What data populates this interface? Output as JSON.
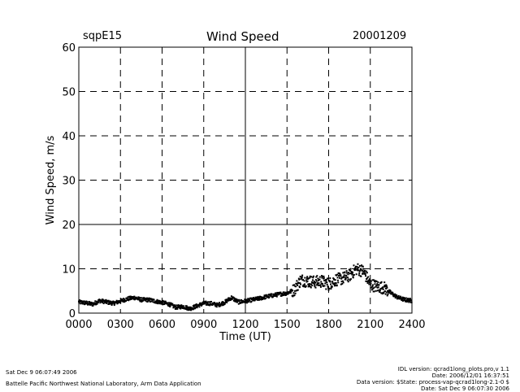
{
  "header": {
    "station": "sqpE15",
    "title": "Wind Speed",
    "date": "20001209"
  },
  "footer": {
    "left_line1": "Sat Dec  9 06:07:49 2006",
    "left_line2": "Battelle Pacific Northwest National Laboratory, Arm Data Application",
    "right_line1": "IDL version: qcrad1long_plots.pro,v 1.1",
    "right_line2": "Date: 2006/12/01 16:37:51",
    "right_line3": "Data version: $State: process-vap-qcrad1long-2.1-0 $",
    "right_line4": "Date: Sat Dec  9 06:07:30 2006"
  },
  "chart_data": {
    "type": "scatter",
    "title": "Wind Speed",
    "xlabel": "Time (UT)",
    "ylabel": "Wind Speed, m/s",
    "xlim": [
      0,
      2400
    ],
    "ylim": [
      0,
      60
    ],
    "x_ticks": [
      "0000",
      "0300",
      "0600",
      "0900",
      "1200",
      "1500",
      "1800",
      "2100",
      "2400"
    ],
    "y_ticks": [
      "0",
      "10",
      "20",
      "30",
      "40",
      "50",
      "60"
    ],
    "grid": true,
    "series": [
      {
        "color": "#000000",
        "x_hours": [
          0,
          0.5,
          1,
          1.5,
          2,
          2.5,
          3,
          3.5,
          4,
          4.5,
          5,
          5.5,
          6,
          6.5,
          7,
          7.5,
          8,
          8.5,
          9,
          9.5,
          10,
          10.5,
          11,
          11.5,
          12,
          12.5,
          13,
          13.5,
          14,
          14.5,
          15,
          15.5,
          16,
          16.5,
          17,
          17.5,
          18,
          18.5,
          19,
          19.5,
          20,
          20.5,
          21,
          21.5,
          22,
          22.5,
          23,
          23.5,
          24
        ],
        "y": [
          2.5,
          2.3,
          2.0,
          2.8,
          2.5,
          2.2,
          2.7,
          3.2,
          3.5,
          3.0,
          3.0,
          2.7,
          2.4,
          2.0,
          1.3,
          1.5,
          1.0,
          1.6,
          2.2,
          2.2,
          1.8,
          2.4,
          3.5,
          2.5,
          2.7,
          3.0,
          3.3,
          3.7,
          4.0,
          4.3,
          4.5,
          5.2,
          7.5,
          7.2,
          7.0,
          7.2,
          6.5,
          7.5,
          7.8,
          8.5,
          10.0,
          9.5,
          6.5,
          6.0,
          5.7,
          4.5,
          3.5,
          3.0,
          2.8
        ]
      }
    ]
  }
}
